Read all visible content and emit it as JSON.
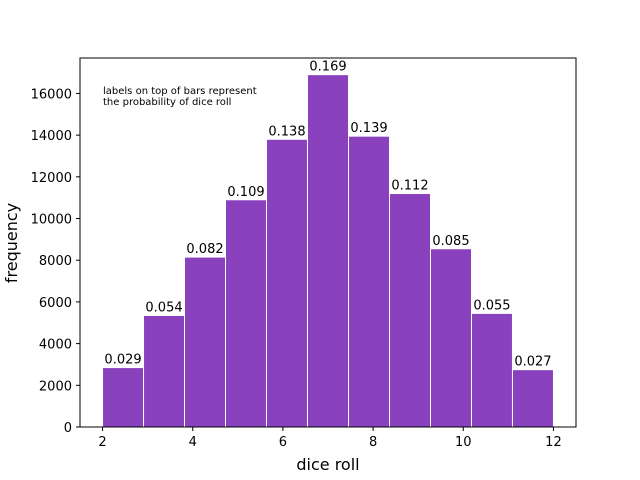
{
  "chart_data": {
    "type": "bar",
    "bin_edges": [
      2,
      2.909,
      3.818,
      4.727,
      5.636,
      6.545,
      7.455,
      8.364,
      9.273,
      10.182,
      11.091,
      12
    ],
    "values": [
      2850,
      5350,
      8150,
      10900,
      13800,
      16900,
      13950,
      11200,
      8550,
      5450,
      2750
    ],
    "bar_labels": [
      "0.029",
      "0.054",
      "0.082",
      "0.109",
      "0.138",
      "0.169",
      "0.139",
      "0.112",
      "0.085",
      "0.055",
      "0.027"
    ],
    "xlabel": "dice roll",
    "ylabel": "frequency",
    "xlim": [
      1.5,
      12.5
    ],
    "ylim": [
      0,
      17700
    ],
    "xticks": [
      2,
      4,
      6,
      8,
      10,
      12
    ],
    "yticks": [
      0,
      2000,
      4000,
      6000,
      8000,
      10000,
      12000,
      14000,
      16000
    ],
    "grid": false,
    "bar_color": "#8a41bd",
    "annotation": [
      "labels on top of bars represent",
      "the probability of dice roll"
    ]
  }
}
